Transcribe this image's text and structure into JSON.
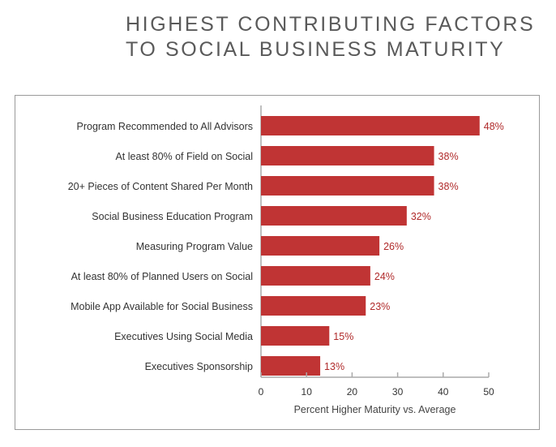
{
  "chart_data": {
    "type": "bar",
    "orientation": "horizontal",
    "title": [
      "HIGHEST CONTRIBUTING FACTORS",
      "TO SOCIAL BUSINESS MATURITY"
    ],
    "categories": [
      "Program Recommended to All Advisors",
      "At least 80% of Field on Social",
      "20+ Pieces of Content Shared Per Month",
      "Social Business Education Program",
      "Measuring Program Value",
      "At least 80% of Planned Users on Social",
      "Mobile App Available for Social Business",
      "Executives Using Social Media",
      "Executives Sponsorship"
    ],
    "values": [
      48,
      38,
      38,
      32,
      26,
      24,
      23,
      15,
      13
    ],
    "data_labels": [
      "48%",
      "38%",
      "38%",
      "32%",
      "26%",
      "24%",
      "23%",
      "15%",
      "13%"
    ],
    "xlabel": "Percent Higher Maturity vs. Average",
    "ylabel": "",
    "xlim": [
      0,
      50
    ],
    "xticks": [
      0,
      10,
      20,
      30,
      40,
      50
    ],
    "grid": false,
    "bar_color": "#c03434",
    "label_color": "#b02a2a"
  }
}
